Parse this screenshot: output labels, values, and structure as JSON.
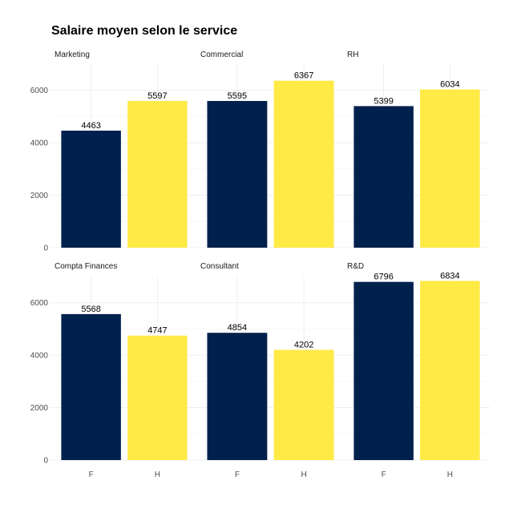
{
  "chart_data": {
    "type": "bar",
    "title": "Salaire moyen selon le service",
    "xlabel": "",
    "ylabel": "",
    "categories": [
      "F",
      "H"
    ],
    "colors": {
      "F": "#00204D",
      "H": "#FFEA46"
    },
    "ylim": [
      0,
      7000
    ],
    "yticks": [
      0,
      2000,
      4000,
      6000
    ],
    "grid": true,
    "legend": "none",
    "panels": [
      {
        "name": "Marketing",
        "values": [
          4463,
          5597
        ]
      },
      {
        "name": "Commercial",
        "values": [
          5595,
          6367
        ]
      },
      {
        "name": "RH",
        "values": [
          5399,
          6034
        ]
      },
      {
        "name": "Compta Finances",
        "values": [
          5568,
          4747
        ]
      },
      {
        "name": "Consultant",
        "values": [
          4854,
          4202
        ]
      },
      {
        "name": "R&D",
        "values": [
          6796,
          6834
        ]
      }
    ]
  }
}
